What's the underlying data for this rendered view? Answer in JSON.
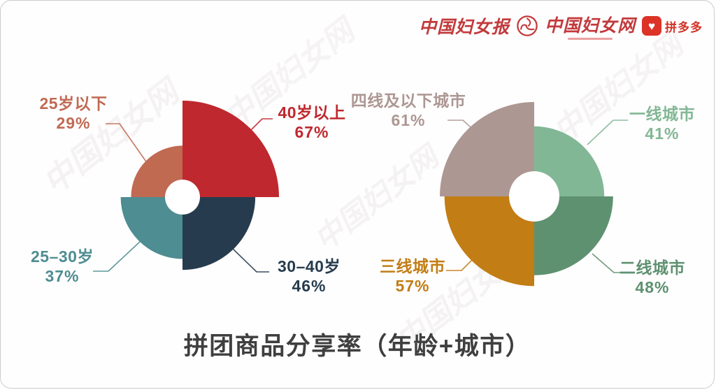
{
  "header": {
    "logos": [
      {
        "id": "china-womens-news",
        "text": "中国妇女报"
      },
      {
        "id": "china-womens-net",
        "text": "中国妇女网"
      },
      {
        "id": "pinduoduo",
        "text": "拼多多",
        "heart_icon": "♥"
      }
    ],
    "brand_red": "#c23a3c",
    "pinduoduo_red": "#dd3226"
  },
  "title": "拼团商品分享率（年龄+城市）",
  "watermark_text": "中国妇女网",
  "chart_data": [
    {
      "type": "pie",
      "variant": "four-quadrant-rose-donut",
      "name": "age",
      "unit": "%",
      "segments": [
        {
          "label": "25岁以下",
          "value": 29,
          "pct": "29%",
          "color": "#c06a52",
          "quadrant": "top-left"
        },
        {
          "label": "40岁以上",
          "value": 67,
          "pct": "67%",
          "color": "#bf282e",
          "quadrant": "top-right"
        },
        {
          "label": "30–40岁",
          "value": 46,
          "pct": "46%",
          "color": "#263c4e",
          "quadrant": "bottom-right"
        },
        {
          "label": "25–30岁",
          "value": 37,
          "pct": "37%",
          "color": "#4e8d92",
          "quadrant": "bottom-left"
        }
      ]
    },
    {
      "type": "pie",
      "variant": "four-quadrant-rose-donut",
      "name": "city",
      "unit": "%",
      "segments": [
        {
          "label": "四线及以下城市",
          "value": 61,
          "pct": "61%",
          "color": "#ac9793",
          "quadrant": "top-left"
        },
        {
          "label": "一线城市",
          "value": 41,
          "pct": "41%",
          "color": "#82b795",
          "quadrant": "top-right"
        },
        {
          "label": "二线城市",
          "value": 48,
          "pct": "48%",
          "color": "#5e9170",
          "quadrant": "bottom-right"
        },
        {
          "label": "三线城市",
          "value": 57,
          "pct": "57%",
          "color": "#c27d15",
          "quadrant": "bottom-left"
        }
      ]
    }
  ]
}
